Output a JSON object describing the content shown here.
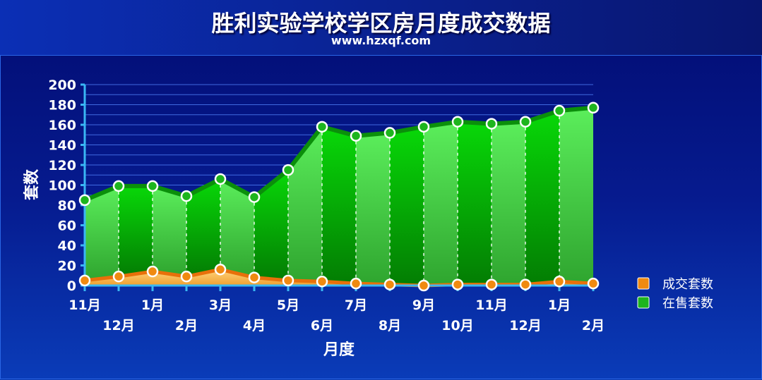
{
  "title": "胜利实验学校学区房月度成交数据",
  "subtitle": "www.hzxqf.com",
  "chart_data": {
    "type": "area",
    "categories": [
      "11月",
      "12月",
      "1月",
      "2月",
      "3月",
      "4月",
      "5月",
      "6月",
      "7月",
      "8月",
      "9月",
      "10月",
      "11月",
      "12月",
      "1月",
      "2月"
    ],
    "series": [
      {
        "name": "成交套数",
        "values": [
          5,
          9,
          14,
          9,
          16,
          8,
          5,
          4,
          2,
          1,
          0,
          1,
          1,
          1,
          4,
          2
        ],
        "color": "#f08a10"
      },
      {
        "name": "在售套数",
        "values": [
          85,
          99,
          99,
          89,
          106,
          88,
          115,
          158,
          149,
          152,
          158,
          163,
          161,
          163,
          174,
          177
        ],
        "color": "#1db51d"
      }
    ],
    "xlabel": "月度",
    "ylabel": "套数",
    "ylim": [
      0,
      200
    ],
    "yticks": [
      0,
      20,
      40,
      60,
      80,
      100,
      120,
      140,
      160,
      180,
      200
    ],
    "grid": true,
    "legend": "right"
  }
}
